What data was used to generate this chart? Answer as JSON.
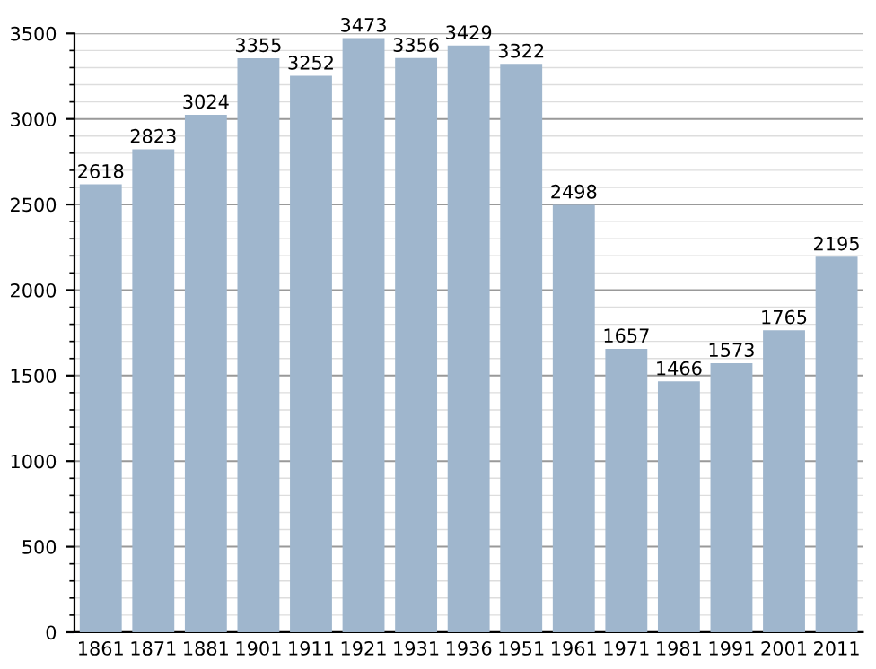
{
  "chart_data": {
    "type": "bar",
    "categories": [
      "1861",
      "1871",
      "1881",
      "1901",
      "1911",
      "1921",
      "1931",
      "1936",
      "1951",
      "1961",
      "1971",
      "1981",
      "1991",
      "2001",
      "2011"
    ],
    "values": [
      2618,
      2823,
      3024,
      3355,
      3252,
      3473,
      3356,
      3429,
      3322,
      2498,
      1657,
      1466,
      1573,
      1765,
      2195
    ],
    "color": "#9fb6cd",
    "data_labels": true,
    "grid": "y",
    "ylim": [
      0,
      3500
    ],
    "yticks": [
      0,
      500,
      1000,
      1500,
      2000,
      2500,
      3000,
      3500
    ]
  }
}
